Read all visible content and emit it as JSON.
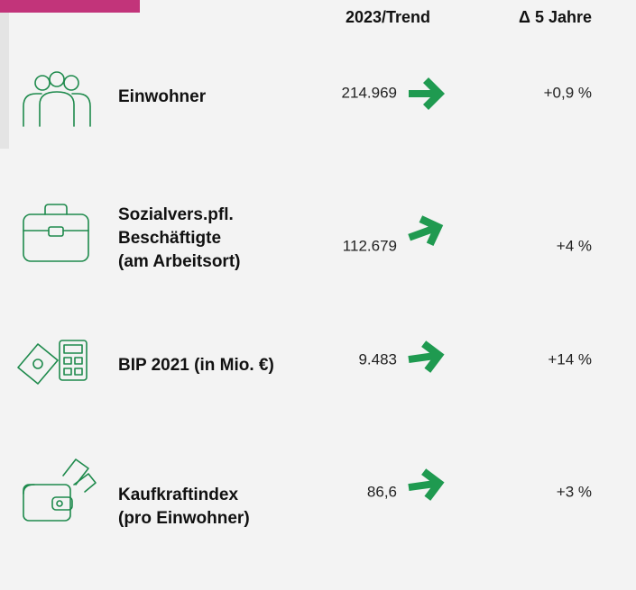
{
  "header": {
    "columns": [
      "2023/Trend",
      "Δ 5 Jahre"
    ]
  },
  "rows": [
    {
      "label": [
        "Einwohner"
      ],
      "value": "214.969",
      "change": "+0,9 %"
    },
    {
      "label": [
        "Sozialvers.pfl.",
        "Beschäftigte",
        "(am Arbeitsort)"
      ],
      "value": "112.679",
      "change": "+4 %"
    },
    {
      "label": [
        "BIP 2021 (in Mio. €)"
      ],
      "value": "9.483",
      "change": "+14 %"
    },
    {
      "label": [
        "Kaufkraftindex",
        "(pro Einwohner)"
      ],
      "value": "86,6",
      "change": "+3 %"
    }
  ]
}
